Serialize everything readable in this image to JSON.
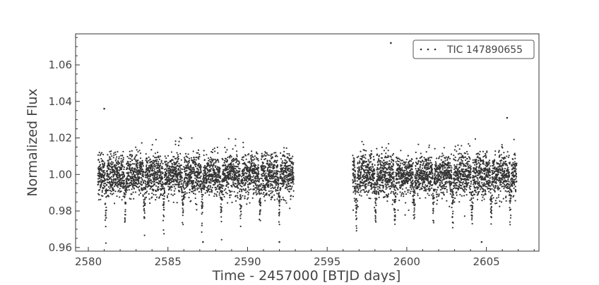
{
  "chart_data": {
    "type": "scatter",
    "title": "",
    "xlabel": "Time - 2457000 [BTJD days]",
    "ylabel": "Normalized Flux",
    "xlim": [
      2579.2,
      2608.3
    ],
    "ylim": [
      0.958,
      1.077
    ],
    "xticks": [
      2580,
      2585,
      2590,
      2595,
      2600,
      2605
    ],
    "yticks": [
      0.96,
      0.98,
      1.0,
      1.02,
      1.04,
      1.06
    ],
    "xtick_labels": [
      "2580",
      "2585",
      "2590",
      "2595",
      "2600",
      "2605"
    ],
    "ytick_labels": [
      "0.96",
      "0.98",
      "1.00",
      "1.02",
      "1.04",
      "1.06"
    ],
    "grid": false,
    "legend_position": "top-right",
    "series": [
      {
        "name": "TIC 147890655",
        "color": "#333333",
        "segments": [
          {
            "start": 2580.6,
            "end": 2592.9
          },
          {
            "start": 2596.6,
            "end": 2606.9
          }
        ],
        "baseline": 1.0,
        "scatter_std": 0.0058,
        "transit_period": 1.21,
        "transit_epoch": 2581.1,
        "transit_depth": 0.024,
        "outliers": [
          {
            "x": 2581.0,
            "y": 1.036
          },
          {
            "x": 2599.0,
            "y": 1.072
          },
          {
            "x": 2606.3,
            "y": 1.031
          },
          {
            "x": 2592.0,
            "y": 0.963
          },
          {
            "x": 2604.7,
            "y": 0.963
          },
          {
            "x": 2587.2,
            "y": 0.963
          }
        ]
      }
    ]
  }
}
